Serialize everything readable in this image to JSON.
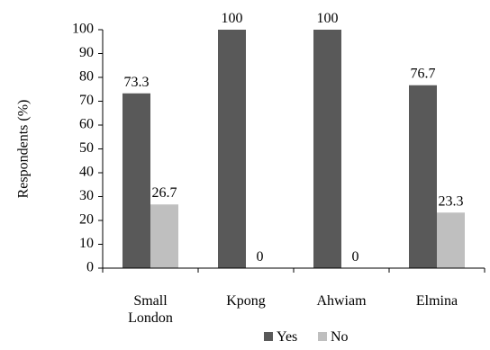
{
  "chart_data": {
    "type": "bar",
    "categories": [
      [
        "Small",
        "London"
      ],
      [
        "Kpong"
      ],
      [
        "Ahwiam"
      ],
      [
        "Elmina"
      ]
    ],
    "series": [
      {
        "name": "Yes",
        "values": [
          73.3,
          100,
          100,
          76.7
        ],
        "labels": [
          "73.3",
          "100",
          "100",
          "76.7"
        ],
        "color": "#595959"
      },
      {
        "name": "No",
        "values": [
          26.7,
          0,
          0,
          23.3
        ],
        "labels": [
          "26.7",
          "0",
          "0",
          "23.3"
        ],
        "color": "#bfbfbf"
      }
    ],
    "ylabel": "Respondents (%)",
    "xlabel": "",
    "ylim": [
      0,
      100
    ],
    "yticks": [
      0,
      10,
      20,
      30,
      40,
      50,
      60,
      70,
      80,
      90,
      100
    ],
    "grid": false,
    "legend": "bottom-center"
  }
}
